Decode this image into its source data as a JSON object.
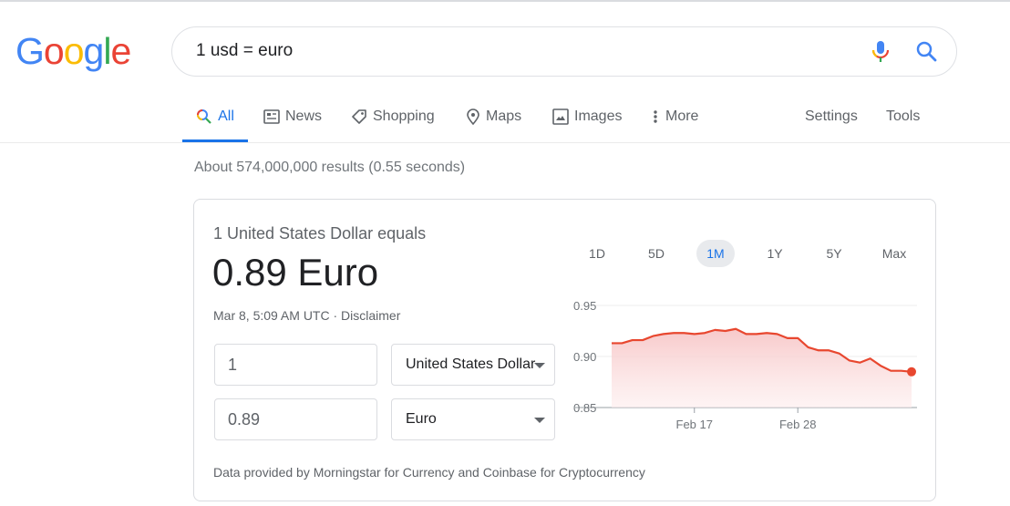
{
  "logo": {
    "letters": [
      "G",
      "o",
      "o",
      "g",
      "l",
      "e"
    ],
    "colors": [
      "#4285f4",
      "#ea4335",
      "#fbbc05",
      "#4285f4",
      "#34a853",
      "#ea4335"
    ]
  },
  "search": {
    "query": "1 usd = euro"
  },
  "icons": {
    "mic": "microphone-icon",
    "search": "search-icon"
  },
  "tabs": [
    {
      "label": "All",
      "icon": "search-icon",
      "active": true
    },
    {
      "label": "News",
      "icon": "news-icon"
    },
    {
      "label": "Shopping",
      "icon": "tag-icon"
    },
    {
      "label": "Maps",
      "icon": "map-pin-icon"
    },
    {
      "label": "Images",
      "icon": "image-icon"
    },
    {
      "label": "More",
      "icon": "more-vertical-icon"
    }
  ],
  "tools": {
    "settings": "Settings",
    "tools": "Tools"
  },
  "stats": "About 574,000,000 results (0.55 seconds)",
  "converter": {
    "equals_label": "1 United States Dollar equals",
    "value": "0.89 Euro",
    "date": "Mar 8, 5:09 AM UTC · Disclaimer",
    "amount_from": "1",
    "currency_from": "United States Dollar",
    "amount_to": "0.89",
    "currency_to": "Euro",
    "ranges": [
      "1D",
      "5D",
      "1M",
      "1Y",
      "5Y",
      "Max"
    ],
    "active_range": "1M",
    "footer": "Data provided by Morningstar for Currency and Coinbase for Cryptocurrency"
  },
  "chart_data": {
    "type": "area",
    "color": "#e8472f",
    "ylim": [
      0.85,
      0.95
    ],
    "yticks": [
      "0.95",
      "0.90",
      "0.85"
    ],
    "xticks": [
      {
        "label": "Feb 17",
        "index": 8
      },
      {
        "label": "Feb 28",
        "index": 18
      }
    ],
    "values": [
      0.913,
      0.913,
      0.916,
      0.916,
      0.92,
      0.922,
      0.923,
      0.923,
      0.922,
      0.923,
      0.926,
      0.925,
      0.927,
      0.922,
      0.922,
      0.923,
      0.922,
      0.918,
      0.918,
      0.909,
      0.906,
      0.906,
      0.903,
      0.896,
      0.894,
      0.898,
      0.891,
      0.886,
      0.886,
      0.885
    ]
  }
}
